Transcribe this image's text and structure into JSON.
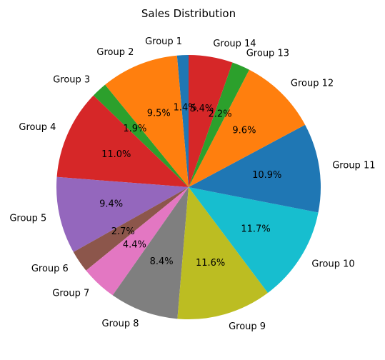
{
  "chart_data": {
    "type": "pie",
    "title": "Sales Distribution",
    "start_angle_deg": 90,
    "direction": "counterclockwise",
    "slices": [
      {
        "label": "Group 1",
        "value": 1.4,
        "pct_label": "1.4%",
        "color": "#1f77b4"
      },
      {
        "label": "Group 2",
        "value": 9.5,
        "pct_label": "9.5%",
        "color": "#ff7f0e"
      },
      {
        "label": "Group 3",
        "value": 1.9,
        "pct_label": "1.9%",
        "color": "#2ca02c"
      },
      {
        "label": "Group 4",
        "value": 11.0,
        "pct_label": "11.0%",
        "color": "#d62728"
      },
      {
        "label": "Group 5",
        "value": 9.4,
        "pct_label": "9.4%",
        "color": "#9467bd"
      },
      {
        "label": "Group 6",
        "value": 2.7,
        "pct_label": "2.7%",
        "color": "#8c564b"
      },
      {
        "label": "Group 7",
        "value": 4.4,
        "pct_label": "4.4%",
        "color": "#e377c2"
      },
      {
        "label": "Group 8",
        "value": 8.4,
        "pct_label": "8.4%",
        "color": "#7f7f7f"
      },
      {
        "label": "Group 9",
        "value": 11.6,
        "pct_label": "11.6%",
        "color": "#bcbd22"
      },
      {
        "label": "Group 10",
        "value": 11.7,
        "pct_label": "11.7%",
        "color": "#17becf"
      },
      {
        "label": "Group 11",
        "value": 10.9,
        "pct_label": "10.9%",
        "color": "#1f77b4"
      },
      {
        "label": "Group 12",
        "value": 9.6,
        "pct_label": "9.6%",
        "color": "#ff7f0e"
      },
      {
        "label": "Group 13",
        "value": 2.2,
        "pct_label": "2.2%",
        "color": "#2ca02c"
      },
      {
        "label": "Group 14",
        "value": 5.4,
        "pct_label": "5.4%",
        "color": "#d62728"
      }
    ]
  }
}
